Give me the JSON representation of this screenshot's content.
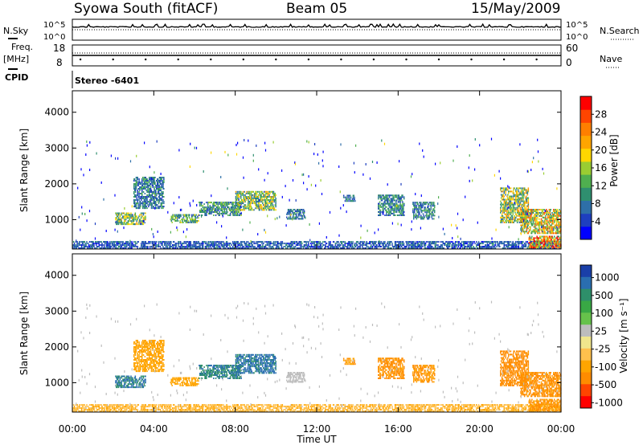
{
  "header": {
    "station": "Syowa South (fitACF)",
    "beam": "Beam 05",
    "date": "15/May/2009"
  },
  "left_labels": {
    "nsky": "N.Sky",
    "freq": "Freq.",
    "freq_unit": "[MHz]",
    "cpid": "CPID"
  },
  "right_labels": {
    "nsearch": "N.Search",
    "nave": "Nave"
  },
  "stereo_label": "Stereo -6401",
  "time_axis": {
    "xlabel": "Time UT",
    "ticks": [
      "00:00",
      "04:00",
      "08:00",
      "12:00",
      "16:00",
      "20:00",
      "00:00"
    ]
  },
  "colors": {
    "power": [
      "#0000ff",
      "#1e3fbf",
      "#2e6fa8",
      "#2f8f6f",
      "#4faf4f",
      "#9acd32",
      "#ffd700",
      "#ffa500",
      "#ff7f00",
      "#ff4500",
      "#ff0000"
    ],
    "velocity_pos": [
      "#1a3fa8",
      "#2a6eb0",
      "#2e8f6a",
      "#39a845",
      "#66c24b"
    ],
    "velocity_neg": [
      "#f0e68c",
      "#ffc04d",
      "#ffa500",
      "#ff8c00",
      "#ff4500",
      "#ff0000"
    ],
    "velocity_ground": "#bdbdbd"
  },
  "chart_data": [
    {
      "type": "line",
      "name": "noise-search",
      "ylim_labels": [
        "10^5",
        "10^0"
      ],
      "right_ylim_labels": [
        "10^5",
        "10^0"
      ]
    },
    {
      "type": "line",
      "name": "frequency-nave",
      "left_ticks": [
        "18",
        "8"
      ],
      "right_ticks": [
        "60",
        "0"
      ]
    },
    {
      "type": "heatmap",
      "name": "power",
      "ylabel": "Slant Range [km]",
      "yticks": [
        1000,
        2000,
        3000,
        4000
      ],
      "ylim": [
        180,
        4600
      ],
      "xlim_hours": [
        0,
        24
      ],
      "colorbar_label": "Power [dB]",
      "colorbar_ticks": [
        "4",
        "8",
        "12",
        "16",
        "20",
        "24",
        "28"
      ],
      "colorbar_range": [
        0,
        32
      ],
      "bands": [
        {
          "t0": 0.0,
          "t1": 24.0,
          "r0": 180,
          "r1": 400,
          "value": 6
        },
        {
          "t0": 2.1,
          "t1": 3.6,
          "r0": 850,
          "r1": 1200,
          "value": 14
        },
        {
          "t0": 3.0,
          "t1": 4.5,
          "r0": 1300,
          "r1": 2200,
          "value": 8
        },
        {
          "t0": 4.8,
          "t1": 6.2,
          "r0": 900,
          "r1": 1150,
          "value": 12
        },
        {
          "t0": 6.2,
          "t1": 8.3,
          "r0": 1100,
          "r1": 1500,
          "value": 10
        },
        {
          "t0": 8.0,
          "t1": 10.0,
          "r0": 1250,
          "r1": 1800,
          "value": 14
        },
        {
          "t0": 10.5,
          "t1": 11.4,
          "r0": 1000,
          "r1": 1300,
          "value": 8
        },
        {
          "t0": 13.3,
          "t1": 13.9,
          "r0": 1500,
          "r1": 1700,
          "value": 8
        },
        {
          "t0": 15.0,
          "t1": 16.3,
          "r0": 1100,
          "r1": 1700,
          "value": 9
        },
        {
          "t0": 16.7,
          "t1": 17.8,
          "r0": 1000,
          "r1": 1500,
          "value": 9
        },
        {
          "t0": 21.0,
          "t1": 22.4,
          "r0": 900,
          "r1": 1900,
          "value": 15
        },
        {
          "t0": 22.0,
          "t1": 24.0,
          "r0": 600,
          "r1": 1300,
          "value": 18
        },
        {
          "t0": 22.4,
          "t1": 24.0,
          "r0": 200,
          "r1": 550,
          "value": 22
        }
      ]
    },
    {
      "type": "heatmap",
      "name": "velocity",
      "ylabel": "Slant Range [km]",
      "yticks": [
        1000,
        2000,
        3000,
        4000
      ],
      "ylim": [
        180,
        4600
      ],
      "xlim_hours": [
        0,
        24
      ],
      "colorbar_label": "Velocity [m s⁻¹]",
      "colorbar_ticks": [
        "1000",
        "500",
        "100",
        "25",
        "-25",
        "-100",
        "-500",
        "-1000"
      ],
      "bands": [
        {
          "t0": 0.0,
          "t1": 24.0,
          "r0": 180,
          "r1": 400,
          "value": -60
        },
        {
          "t0": 2.1,
          "t1": 3.6,
          "r0": 850,
          "r1": 1200,
          "value": 150
        },
        {
          "t0": 3.0,
          "t1": 4.5,
          "r0": 1300,
          "r1": 2200,
          "value": -200
        },
        {
          "t0": 4.8,
          "t1": 6.2,
          "r0": 900,
          "r1": 1150,
          "value": -150
        },
        {
          "t0": 6.2,
          "t1": 8.3,
          "r0": 1100,
          "r1": 1500,
          "value": 120
        },
        {
          "t0": 8.0,
          "t1": 10.0,
          "r0": 1250,
          "r1": 1800,
          "value": 200
        },
        {
          "t0": 10.5,
          "t1": 11.4,
          "r0": 1000,
          "r1": 1300,
          "value": 0
        },
        {
          "t0": 13.3,
          "t1": 13.9,
          "r0": 1500,
          "r1": 1700,
          "value": -300
        },
        {
          "t0": 15.0,
          "t1": 16.3,
          "r0": 1100,
          "r1": 1700,
          "value": -450
        },
        {
          "t0": 16.7,
          "t1": 17.8,
          "r0": 1000,
          "r1": 1500,
          "value": -350
        },
        {
          "t0": 21.0,
          "t1": 22.4,
          "r0": 900,
          "r1": 1900,
          "value": -700
        },
        {
          "t0": 22.0,
          "t1": 24.0,
          "r0": 600,
          "r1": 1300,
          "value": -450
        },
        {
          "t0": 22.4,
          "t1": 24.0,
          "r0": 200,
          "r1": 550,
          "value": -350
        }
      ]
    }
  ]
}
